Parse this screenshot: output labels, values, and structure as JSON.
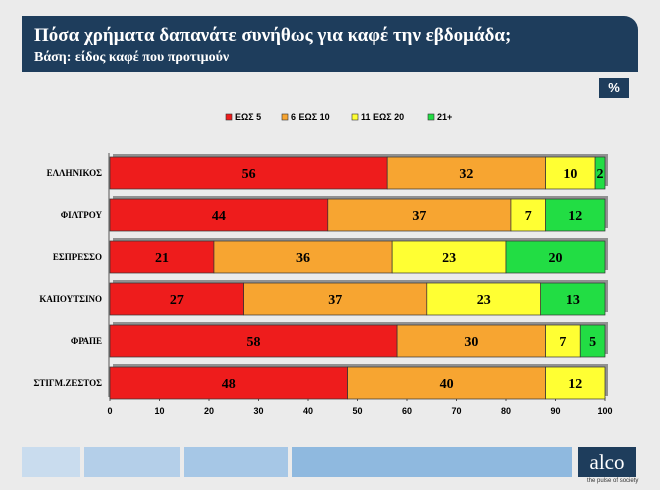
{
  "header": {
    "title": "Πόσα χρήματα δαπανάτε συνήθως για καφέ την εβδομάδα;",
    "subtitle": "Βάση: είδος καφέ που προτιμούν"
  },
  "unit_badge": "%",
  "logo": {
    "text": "alco",
    "tagline": "the pulse of society"
  },
  "colors": {
    "header_bg": "#1e3d5c",
    "series": [
      "#ee1c1c",
      "#f7a531",
      "#ffff33",
      "#22dd44"
    ]
  },
  "chart_data": {
    "type": "bar",
    "orientation": "horizontal",
    "stacked": true,
    "categories": [
      "ΕΛΛΗΝΙΚΟΣ",
      "ΦΙΛΤΡΟΥ",
      "ΕΣΠΡΕΣΣΟ",
      "ΚΑΠΟΥΤΣΙΝΟ",
      "ΦΡΑΠΕ",
      "ΣΤΙΓΜ.ΖΕΣΤΟΣ"
    ],
    "series": [
      {
        "name": "ΕΩΣ 5",
        "values": [
          56,
          44,
          21,
          27,
          58,
          48
        ]
      },
      {
        "name": "6 ΕΩΣ 10",
        "values": [
          32,
          37,
          36,
          37,
          30,
          40
        ]
      },
      {
        "name": "11 ΕΩΣ 20",
        "values": [
          10,
          7,
          23,
          23,
          7,
          12
        ]
      },
      {
        "name": "21+",
        "values": [
          2,
          12,
          20,
          13,
          5,
          0
        ]
      }
    ],
    "xlim": [
      0,
      100
    ],
    "xticks": [
      0,
      10,
      20,
      30,
      40,
      50,
      60,
      70,
      80,
      90,
      100
    ],
    "legend_position": "top-center",
    "grid": false
  }
}
